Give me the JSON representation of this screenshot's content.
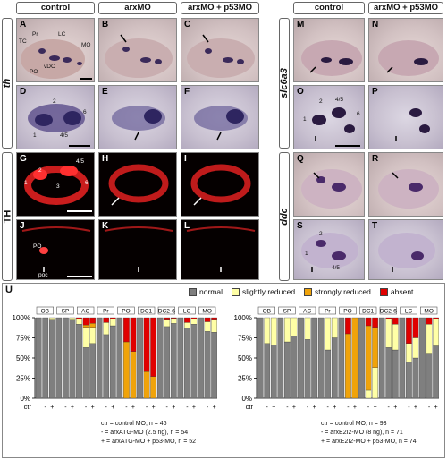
{
  "headers": {
    "left": [
      "control",
      "arxMO",
      "arxMO + p53MO"
    ],
    "right": [
      "control",
      "arxMO + p53MO"
    ]
  },
  "row_labels": {
    "th": "th",
    "TH": "TH",
    "slc6a3": "slc6a3",
    "ddc": "ddc"
  },
  "panels": {
    "A": {
      "label": "A",
      "annos": [
        "Pr",
        "TC",
        "LC",
        "MO",
        "vDC",
        "PO"
      ]
    },
    "B": {
      "label": "B"
    },
    "C": {
      "label": "C"
    },
    "D": {
      "label": "D",
      "annos": [
        "2",
        "6",
        "1",
        "4/5"
      ]
    },
    "E": {
      "label": "E"
    },
    "F": {
      "label": "F"
    },
    "G": {
      "label": "G",
      "annos": [
        "4/5",
        "2",
        "1",
        "3",
        "6"
      ]
    },
    "H": {
      "label": "H"
    },
    "I": {
      "label": "I"
    },
    "J": {
      "label": "J",
      "annos": [
        "PO",
        "poc"
      ]
    },
    "K": {
      "label": "K"
    },
    "L": {
      "label": "L"
    },
    "M": {
      "label": "M"
    },
    "N": {
      "label": "N"
    },
    "O": {
      "label": "O",
      "annos": [
        "2",
        "4/5",
        "1",
        "6"
      ]
    },
    "P": {
      "label": "P"
    },
    "Q": {
      "label": "Q"
    },
    "R": {
      "label": "R"
    },
    "S": {
      "label": "S",
      "annos": [
        "2",
        "1",
        "4/5"
      ]
    },
    "T": {
      "label": "T"
    }
  },
  "section_U": {
    "label": "U",
    "legend": [
      {
        "label": "normal",
        "color": "#7f7f7f"
      },
      {
        "label": "slightly reduced",
        "color": "#ffffa6"
      },
      {
        "label": "strongly reduced",
        "color": "#f0a30a"
      },
      {
        "label": "absent",
        "color": "#e00000"
      }
    ],
    "ctr_label": "ctr",
    "notes_left": [
      "ctr = control MO, n = 46",
      "- = arxATG-MO (2.5 ng), n = 54",
      "+ = arxATG-MO + p53-MO, n = 52"
    ],
    "notes_right": [
      "ctr = control MO, n = 93",
      "- = arxE2I2-MO (8 ng), n = 71",
      "+ = arxE2I2-MO + p53-MO, n = 74"
    ]
  },
  "chart_data": [
    {
      "type": "bar",
      "stacked": true,
      "ylabel": "",
      "ylim": [
        0,
        100
      ],
      "yticks": [
        "0%",
        "25%",
        "50%",
        "75%",
        "100%"
      ],
      "groups": [
        "OB",
        "SP",
        "AC",
        "Pr",
        "PO",
        "DC1",
        "DC2-6",
        "LC",
        "MO"
      ],
      "bar_labels": [
        "ctr",
        "-",
        "+"
      ],
      "series": [
        {
          "name": "normal",
          "values": [
            [
              100,
              100,
              97
            ],
            [
              100,
              100,
              97
            ],
            [
              92,
              63,
              68
            ],
            [
              100,
              79,
              90
            ],
            [
              100,
              0,
              0
            ],
            [
              100,
              0,
              0
            ],
            [
              100,
              89,
              93
            ],
            [
              100,
              87,
              92
            ],
            [
              100,
              83,
              82
            ]
          ]
        },
        {
          "name": "slightly reduced",
          "values": [
            [
              0,
              0,
              3
            ],
            [
              0,
              0,
              3
            ],
            [
              6,
              25,
              20
            ],
            [
              0,
              15,
              8
            ],
            [
              0,
              0,
              0
            ],
            [
              0,
              0,
              0
            ],
            [
              0,
              8,
              6
            ],
            [
              0,
              7,
              6
            ],
            [
              0,
              12,
              15
            ]
          ]
        },
        {
          "name": "strongly reduced",
          "values": [
            [
              0,
              0,
              0
            ],
            [
              0,
              0,
              0
            ],
            [
              0,
              3,
              5
            ],
            [
              0,
              0,
              0
            ],
            [
              0,
              70,
              58
            ],
            [
              0,
              33,
              27
            ],
            [
              0,
              0,
              0
            ],
            [
              0,
              0,
              0
            ],
            [
              0,
              0,
              0
            ]
          ]
        },
        {
          "name": "absent",
          "values": [
            [
              0,
              0,
              0
            ],
            [
              0,
              0,
              0
            ],
            [
              2,
              9,
              7
            ],
            [
              0,
              6,
              2
            ],
            [
              0,
              30,
              42
            ],
            [
              0,
              67,
              73
            ],
            [
              0,
              3,
              1
            ],
            [
              0,
              6,
              2
            ],
            [
              0,
              5,
              3
            ]
          ]
        }
      ]
    },
    {
      "type": "bar",
      "stacked": true,
      "ylabel": "",
      "ylim": [
        0,
        100
      ],
      "yticks": [
        "0%",
        "25%",
        "50%",
        "75%",
        "100%"
      ],
      "groups": [
        "OB",
        "SP",
        "AC",
        "Pr",
        "PO",
        "DC1",
        "DC2-6",
        "LC",
        "MO"
      ],
      "bar_labels": [
        "ctr",
        "-",
        "+"
      ],
      "series": [
        {
          "name": "normal",
          "values": [
            [
              100,
              68,
              66
            ],
            [
              100,
              70,
              77
            ],
            [
              100,
              73,
              100
            ],
            [
              100,
              60,
              75
            ],
            [
              100,
              0,
              0
            ],
            [
              100,
              0,
              0
            ],
            [
              100,
              63,
              60
            ],
            [
              100,
              45,
              50
            ],
            [
              100,
              56,
              65
            ]
          ]
        },
        {
          "name": "slightly reduced",
          "values": [
            [
              0,
              32,
              34
            ],
            [
              0,
              30,
              23
            ],
            [
              0,
              27,
              0
            ],
            [
              0,
              40,
              25
            ],
            [
              0,
              0,
              0
            ],
            [
              0,
              10,
              38
            ],
            [
              0,
              35,
              32
            ],
            [
              0,
              23,
              25
            ],
            [
              0,
              36,
              33
            ]
          ]
        },
        {
          "name": "strongly reduced",
          "values": [
            [
              0,
              0,
              0
            ],
            [
              0,
              0,
              0
            ],
            [
              0,
              0,
              0
            ],
            [
              0,
              0,
              0
            ],
            [
              0,
              80,
              100
            ],
            [
              0,
              80,
              50
            ],
            [
              0,
              0,
              0
            ],
            [
              0,
              0,
              0
            ],
            [
              0,
              0,
              0
            ]
          ]
        },
        {
          "name": "absent",
          "values": [
            [
              0,
              0,
              0
            ],
            [
              0,
              0,
              0
            ],
            [
              0,
              0,
              0
            ],
            [
              0,
              0,
              0
            ],
            [
              0,
              20,
              0
            ],
            [
              0,
              10,
              12
            ],
            [
              0,
              2,
              8
            ],
            [
              0,
              32,
              25
            ],
            [
              0,
              8,
              2
            ]
          ]
        }
      ]
    }
  ]
}
